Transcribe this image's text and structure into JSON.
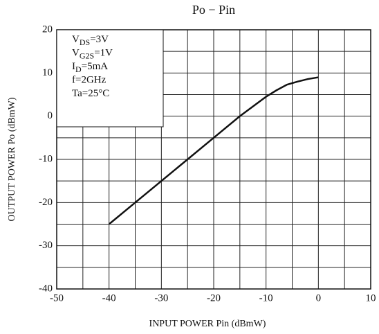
{
  "chart_data": {
    "type": "line",
    "title": "Po − Pin",
    "xlabel": "INPUT POWER   Pin   (dBmW)",
    "ylabel": "OUTPUT POWER   Po   (dBmW)",
    "x": [
      -40,
      -35,
      -30,
      -25,
      -20,
      -15,
      -10,
      -8,
      -6,
      -4,
      -2,
      0
    ],
    "series": [
      {
        "name": "Po",
        "color": "#111111",
        "values": [
          -25,
          -20,
          -15,
          -10,
          -5,
          0,
          4.5,
          6,
          7.3,
          8,
          8.6,
          9
        ]
      }
    ],
    "xlim": [
      -50,
      10
    ],
    "xticks": [
      -50,
      -40,
      -30,
      -20,
      -10,
      0,
      10
    ],
    "ylim": [
      -40,
      20
    ],
    "yticks": [
      -40,
      -30,
      -20,
      -10,
      0,
      10,
      20
    ],
    "xgrid_minor": [
      -45,
      -35,
      -25,
      -15,
      -5,
      5
    ],
    "ygrid_minor": [
      -35,
      -25,
      -15,
      -5,
      5,
      15
    ],
    "grid": true,
    "annotations": [
      {
        "text": "V",
        "sub": "DS",
        "rest": "=3V"
      },
      {
        "text": "V",
        "sub": "G2S",
        "rest": "=1V"
      },
      {
        "text": "I",
        "sub": "D",
        "rest": "=5mA"
      },
      {
        "text": "f=2GHz"
      },
      {
        "text": "Ta=25°C"
      }
    ]
  }
}
